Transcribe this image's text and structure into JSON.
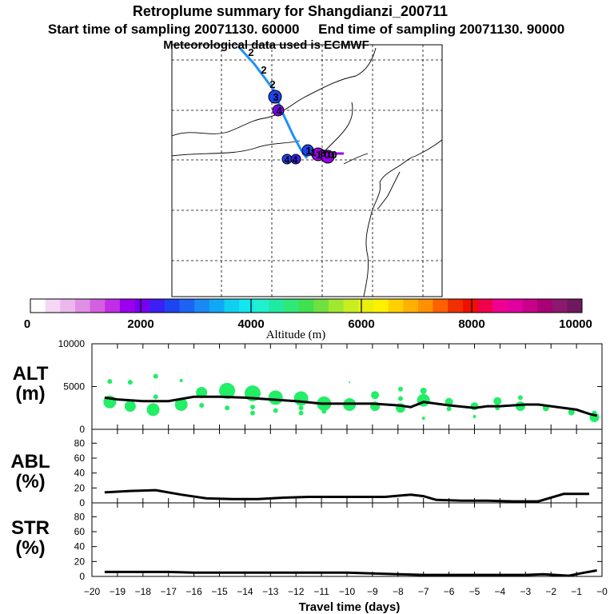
{
  "title": {
    "line1": "Retroplume summary for Shangdianzi_200711",
    "line2": "Start time of sampling 20071130. 60000     End time of sampling 20071130. 90000",
    "line3": "Meteorological data used is ECMWF"
  },
  "colorbar": {
    "label": "Altitude (m)",
    "ticks": [
      "0",
      "2000",
      "4000",
      "6000",
      "8000",
      "10000"
    ],
    "colors": [
      "#ffffff",
      "#f5d6f5",
      "#ecb7ee",
      "#e08ee6",
      "#d45fe0",
      "#c02ee6",
      "#9a00ee",
      "#7a00f0",
      "#3a20f5",
      "#1e44f0",
      "#1e64f2",
      "#1a88f5",
      "#10a8f5",
      "#10cff0",
      "#10e8ee",
      "#20efd0",
      "#20eaa0",
      "#30e878",
      "#40e050",
      "#70e040",
      "#a0e830",
      "#c8ee20",
      "#e8f010",
      "#fff000",
      "#ffd000",
      "#ffb000",
      "#ff9000",
      "#ff6000",
      "#f03000",
      "#f01000",
      "#f0004a",
      "#f00090",
      "#e000a0",
      "#c8008a",
      "#a80075",
      "#8c1870",
      "#701860"
    ]
  },
  "map": {
    "trajectory_labels": [
      "2",
      "2",
      "2",
      "3",
      "4",
      "4",
      "4",
      "1",
      "1",
      "1",
      "8",
      "0",
      "0",
      "0"
    ]
  },
  "chart_data": [
    {
      "type": "line",
      "panel": "ALT",
      "title": "ALT",
      "ylabel": "(m)",
      "x": [
        -19.5,
        -19,
        -18,
        -17,
        -16,
        -15,
        -14,
        -13,
        -12,
        -11,
        -10,
        -9,
        -8,
        -7.5,
        -7,
        -6,
        -5,
        -4.5,
        -4,
        -3,
        -2.5,
        -2,
        -1,
        -0.5,
        -0.2
      ],
      "values": [
        3700,
        3500,
        3300,
        3300,
        3800,
        3800,
        3700,
        3500,
        3300,
        3000,
        3000,
        3000,
        2800,
        2600,
        3200,
        2800,
        2500,
        2700,
        2700,
        2900,
        2900,
        2700,
        2300,
        1800,
        1600
      ],
      "ylim": [
        0,
        10000
      ],
      "yticks": [
        "0",
        "5000",
        "10000"
      ],
      "scatter_color": "#22ee66",
      "scatter": [
        {
          "x": -19.3,
          "y": 3200,
          "s": 8
        },
        {
          "x": -19.3,
          "y": 5600,
          "s": 3
        },
        {
          "x": -18.5,
          "y": 2700,
          "s": 7
        },
        {
          "x": -18.5,
          "y": 5500,
          "s": 3
        },
        {
          "x": -17.6,
          "y": 2300,
          "s": 8
        },
        {
          "x": -17.5,
          "y": 6200,
          "s": 3
        },
        {
          "x": -17.5,
          "y": 3800,
          "s": 3
        },
        {
          "x": -16.5,
          "y": 2900,
          "s": 8
        },
        {
          "x": -16.5,
          "y": 5700,
          "s": 2
        },
        {
          "x": -15.7,
          "y": 4300,
          "s": 7
        },
        {
          "x": -15.7,
          "y": 2800,
          "s": 3
        },
        {
          "x": -14.7,
          "y": 4500,
          "s": 10
        },
        {
          "x": -14.7,
          "y": 2500,
          "s": 3
        },
        {
          "x": -13.7,
          "y": 4200,
          "s": 10
        },
        {
          "x": -13.7,
          "y": 2600,
          "s": 3
        },
        {
          "x": -13.7,
          "y": 1900,
          "s": 3
        },
        {
          "x": -12.8,
          "y": 3700,
          "s": 9
        },
        {
          "x": -12.8,
          "y": 2200,
          "s": 3
        },
        {
          "x": -11.8,
          "y": 3600,
          "s": 9
        },
        {
          "x": -11.8,
          "y": 2500,
          "s": 3
        },
        {
          "x": -11.8,
          "y": 1900,
          "s": 3
        },
        {
          "x": -10.9,
          "y": 3000,
          "s": 9
        },
        {
          "x": -10.9,
          "y": 2100,
          "s": 3
        },
        {
          "x": -9.9,
          "y": 2900,
          "s": 8
        },
        {
          "x": -9.9,
          "y": 5500,
          "s": 1
        },
        {
          "x": -8.9,
          "y": 4000,
          "s": 5
        },
        {
          "x": -8.9,
          "y": 2700,
          "s": 6
        },
        {
          "x": -7.9,
          "y": 4700,
          "s": 3
        },
        {
          "x": -7.9,
          "y": 3600,
          "s": 3
        },
        {
          "x": -7.9,
          "y": 2500,
          "s": 6
        },
        {
          "x": -7.0,
          "y": 4500,
          "s": 4
        },
        {
          "x": -7.0,
          "y": 3400,
          "s": 8
        },
        {
          "x": -7.0,
          "y": 1300,
          "s": 2
        },
        {
          "x": -6.0,
          "y": 3200,
          "s": 5
        },
        {
          "x": -6.0,
          "y": 2400,
          "s": 3
        },
        {
          "x": -5.0,
          "y": 2700,
          "s": 5
        },
        {
          "x": -5.0,
          "y": 1500,
          "s": 2
        },
        {
          "x": -4.1,
          "y": 3300,
          "s": 5
        },
        {
          "x": -4.1,
          "y": 2500,
          "s": 3
        },
        {
          "x": -3.2,
          "y": 3700,
          "s": 3
        },
        {
          "x": -3.2,
          "y": 2700,
          "s": 6
        },
        {
          "x": -2.2,
          "y": 2500,
          "s": 4
        },
        {
          "x": -1.2,
          "y": 2000,
          "s": 4
        },
        {
          "x": -0.3,
          "y": 1400,
          "s": 6
        },
        {
          "x": -0.3,
          "y": 1900,
          "s": 3
        }
      ]
    },
    {
      "type": "line",
      "panel": "ABL",
      "title": "ABL",
      "ylabel": "(%)",
      "x": [
        -19.5,
        -18.5,
        -17.5,
        -16.5,
        -15.5,
        -14.5,
        -13.5,
        -12.5,
        -11.5,
        -10.5,
        -9.5,
        -8.5,
        -7.5,
        -7,
        -6.5,
        -5.5,
        -4.5,
        -3.5,
        -2.5,
        -1.5,
        -1,
        -0.5
      ],
      "values": [
        14,
        16,
        17,
        11,
        6,
        5,
        5,
        7,
        8,
        8,
        8,
        8,
        11,
        9,
        4,
        3,
        3,
        2,
        2,
        12,
        12,
        12
      ],
      "ylim": [
        0,
        90
      ],
      "yticks": [
        "0",
        "20",
        "40",
        "60",
        "80"
      ]
    },
    {
      "type": "line",
      "panel": "STR",
      "title": "STR",
      "ylabel": "(%)",
      "x": [
        -19.5,
        -18,
        -17,
        -16,
        -15,
        -14,
        -13,
        -12,
        -11,
        -10,
        -9,
        -8,
        -7,
        -6,
        -5,
        -4,
        -3,
        -2.3,
        -1.3,
        -0.7,
        -0.2
      ],
      "values": [
        6,
        6,
        6,
        5,
        5,
        5,
        5,
        5,
        5,
        5,
        4,
        3,
        2,
        2,
        2,
        2,
        2,
        3,
        1,
        5,
        8
      ],
      "ylim": [
        0,
        90
      ],
      "yticks": [
        "0",
        "20",
        "40",
        "60",
        "80"
      ]
    }
  ],
  "xaxis": {
    "label": "Travel time (days)",
    "ticks": [
      "−20",
      "−19",
      "−18",
      "−17",
      "−16",
      "−15",
      "−14",
      "−13",
      "−12",
      "−11",
      "−10",
      "−9",
      "−8",
      "−7",
      "−6",
      "−5",
      "−4",
      "−3",
      "−2",
      "−1",
      "−0"
    ]
  }
}
